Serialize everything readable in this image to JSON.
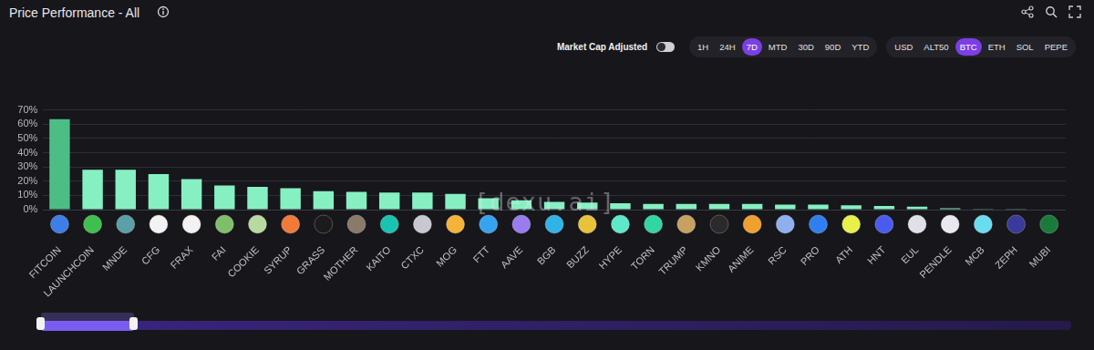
{
  "header": {
    "title": "Price Performance - All",
    "toggle_label": "Market Cap Adjusted",
    "timeframes": [
      "1H",
      "24H",
      "7D",
      "MTD",
      "30D",
      "90D",
      "YTD"
    ],
    "timeframe_selected": "7D",
    "currencies": [
      "USD",
      "ALT50",
      "BTC",
      "ETH",
      "SOL",
      "PEPE"
    ],
    "currency_selected": "BTC"
  },
  "watermark": "[dexu.ai]",
  "chart_data": {
    "type": "bar",
    "categories": [
      "FITCOIN",
      "LAUNCHCOIN",
      "MNDE",
      "CFG",
      "FRAX",
      "FAI",
      "COOKIE",
      "SYRUP",
      "GRASS",
      "MOTHER",
      "KAITO",
      "CTXC",
      "MOG",
      "FTT",
      "AAVE",
      "BGB",
      "BUZZ",
      "HYPE",
      "TORN",
      "TRUMP",
      "KMNO",
      "ANIME",
      "RSC",
      "PRO",
      "ATH",
      "HNT",
      "EUL",
      "PENDLE",
      "MCB",
      "ZEPH",
      "MUBI"
    ],
    "values": [
      63.5,
      28,
      28,
      25,
      21.5,
      17,
      16,
      15,
      13,
      12.5,
      12,
      12,
      11,
      8,
      6.5,
      5.5,
      5,
      4.5,
      4,
      4,
      4,
      4,
      3.5,
      3.5,
      3,
      2.5,
      2,
      1,
      0.5,
      0.5,
      0.3
    ],
    "colors": [
      "#4dbd86",
      "#86f0c3",
      "#86f0c3",
      "#86f0c3",
      "#86f0c3",
      "#86f0c3",
      "#86f0c3",
      "#86f0c3",
      "#86f0c3",
      "#86f0c3",
      "#86f0c3",
      "#86f0c3",
      "#86f0c3",
      "#86f0c3",
      "#86f0c3",
      "#86f0c3",
      "#86f0c3",
      "#86f0c3",
      "#86f0c3",
      "#86f0c3",
      "#86f0c3",
      "#86f0c3",
      "#86f0c3",
      "#86f0c3",
      "#86f0c3",
      "#86f0c3",
      "#86f0c3",
      "#86f0c3",
      "#86f0c3",
      "#86f0c3",
      "#86f0c3"
    ],
    "ylim": [
      0,
      70
    ],
    "yticks": [
      {
        "value": 0,
        "label": "0%"
      },
      {
        "value": 10,
        "label": "10%"
      },
      {
        "value": 20,
        "label": "20%"
      },
      {
        "value": 30,
        "label": "30%"
      },
      {
        "value": 40,
        "label": "40%"
      },
      {
        "value": 50,
        "label": "50%"
      },
      {
        "value": 60,
        "label": "60%"
      },
      {
        "value": 70,
        "label": "70%"
      }
    ],
    "grid": true
  }
}
